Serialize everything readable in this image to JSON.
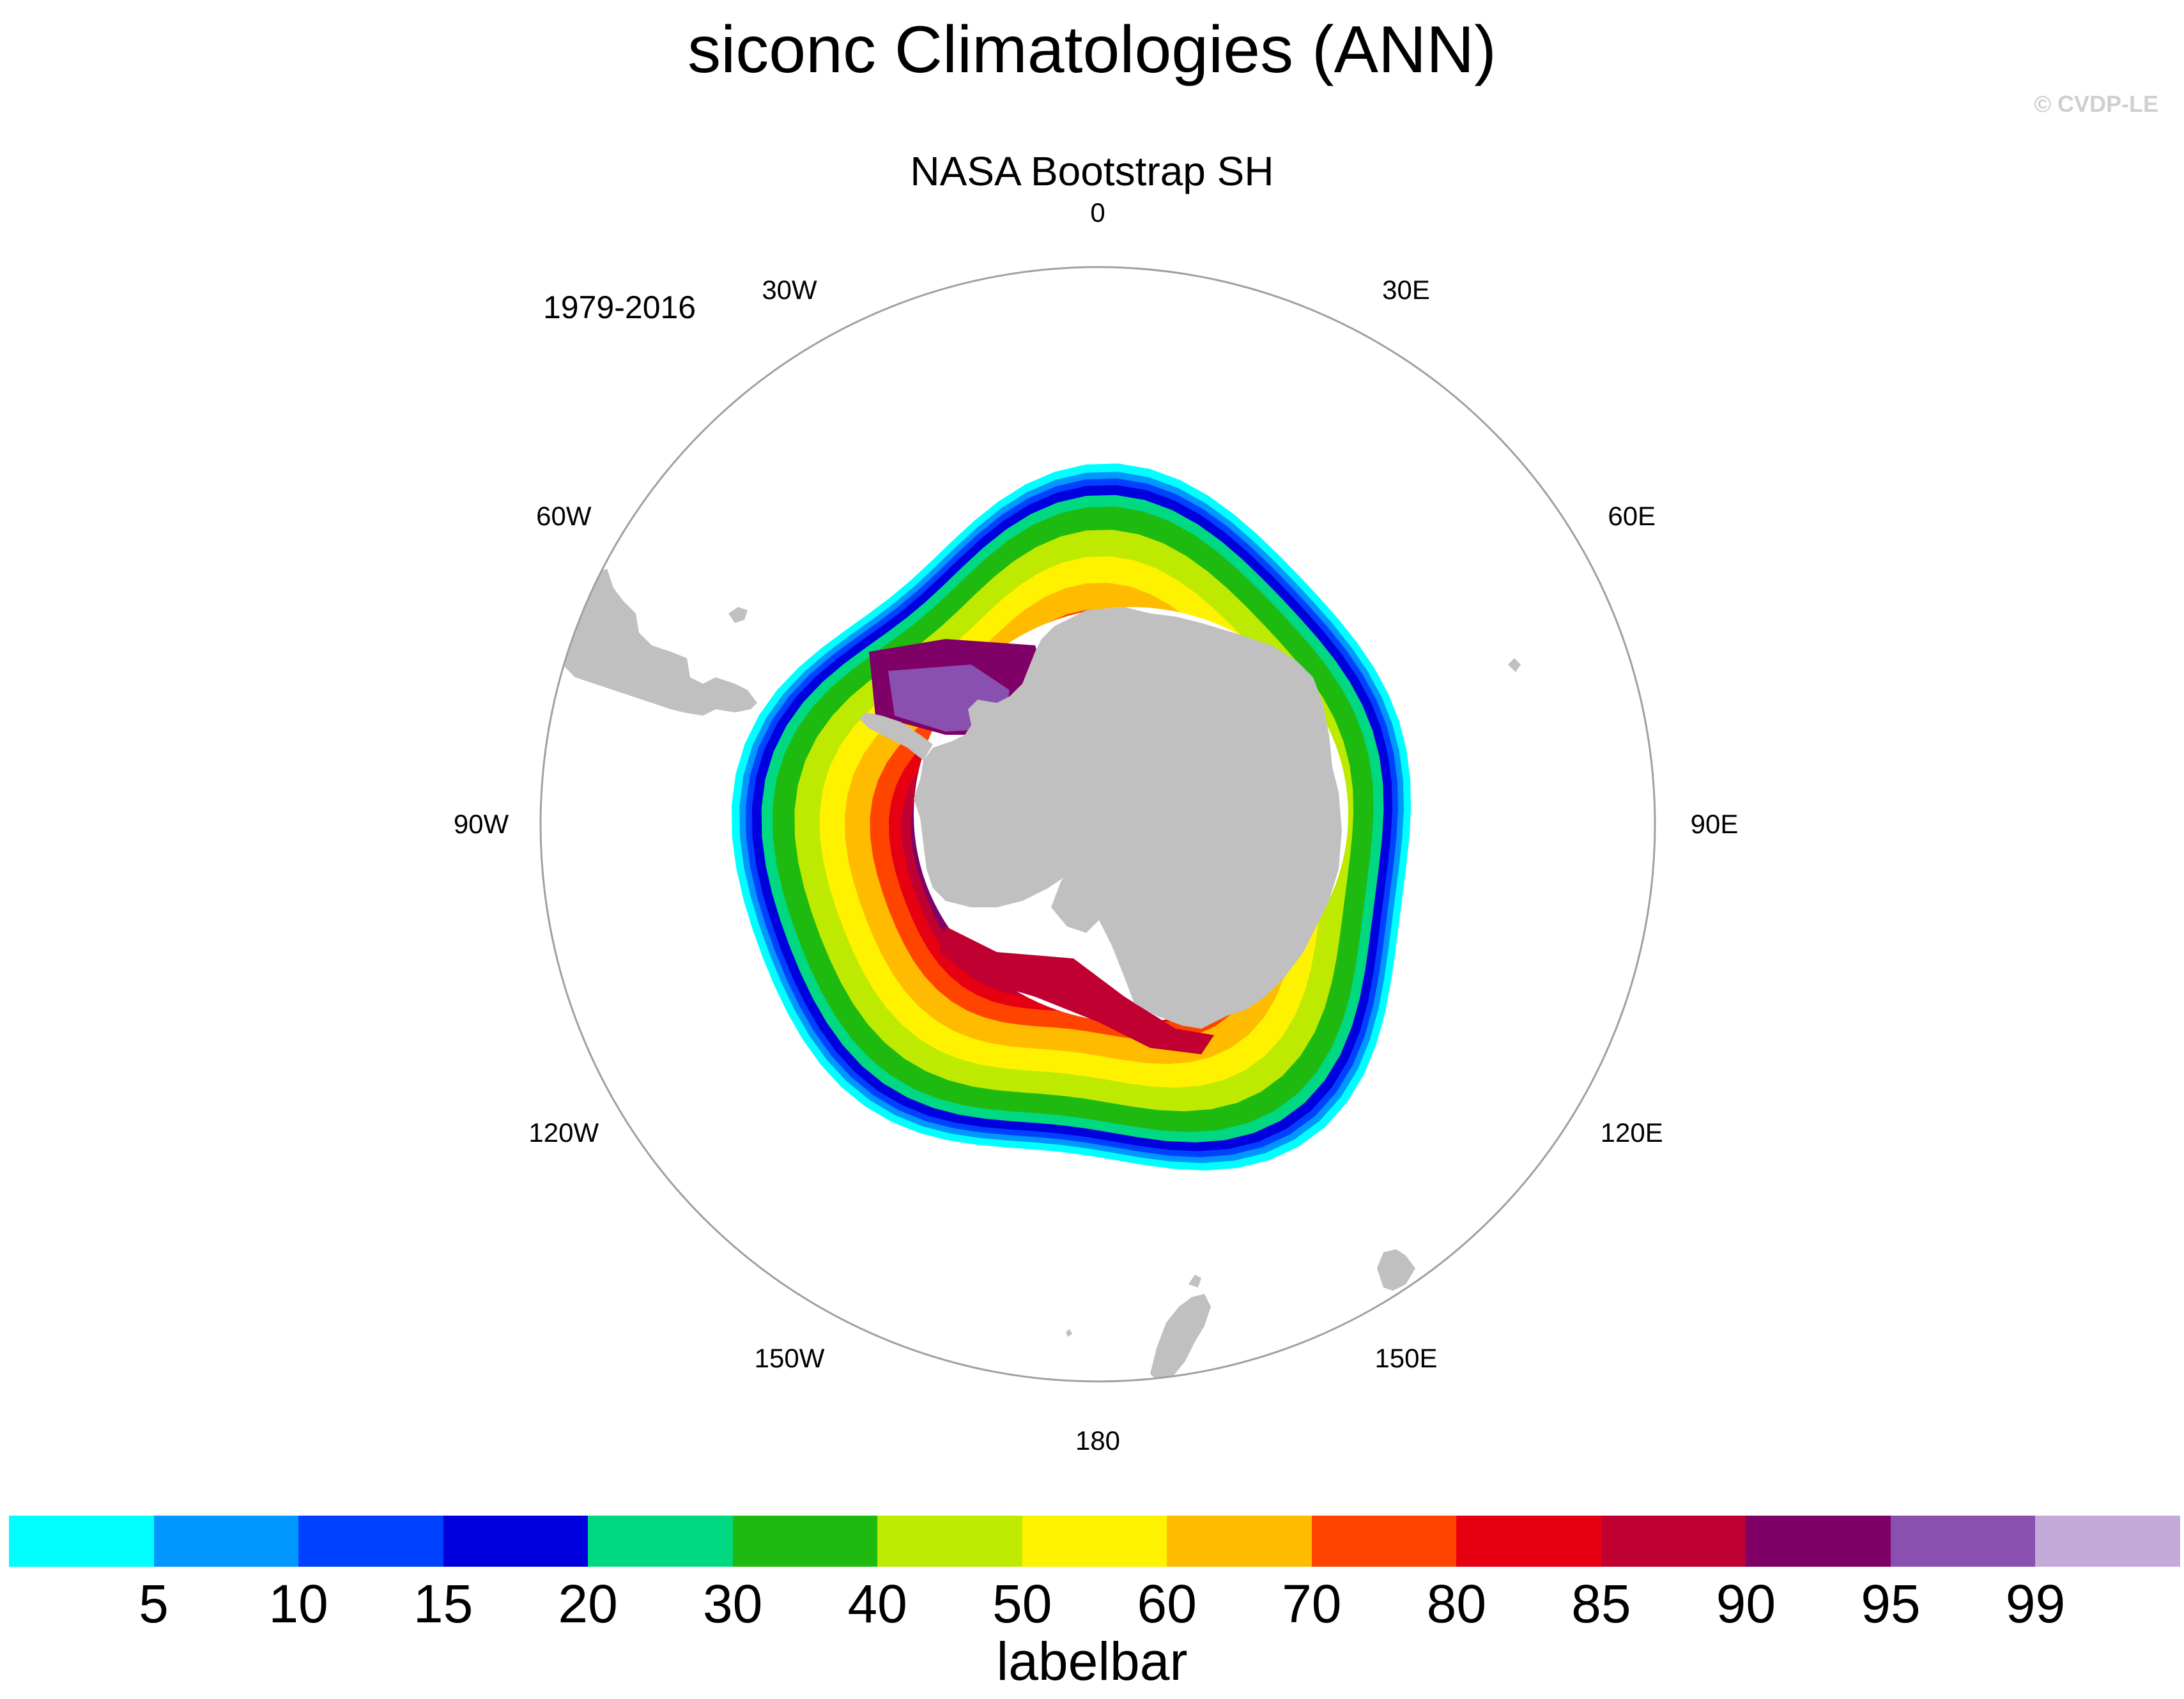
{
  "title": "siconc Climatologies (ANN)",
  "copyright": "© CVDP-LE",
  "subtitle": "NASA Bootstrap SH",
  "period": "1979-2016",
  "longitude_labels": [
    {
      "text": "0",
      "angle": 0
    },
    {
      "text": "30E",
      "angle": 30
    },
    {
      "text": "60E",
      "angle": 60
    },
    {
      "text": "90E",
      "angle": 90
    },
    {
      "text": "120E",
      "angle": 120
    },
    {
      "text": "150E",
      "angle": 150
    },
    {
      "text": "180",
      "angle": 180
    },
    {
      "text": "150W",
      "angle": 210
    },
    {
      "text": "120W",
      "angle": 240
    },
    {
      "text": "90W",
      "angle": 270
    },
    {
      "text": "60W",
      "angle": 300
    },
    {
      "text": "30W",
      "angle": 330
    }
  ],
  "colors": {
    "land": "#c0c0c0",
    "ocean": "#ffffff",
    "map_border": "#a0a0a0"
  },
  "sea_ice_bands": [
    {
      "min": 0,
      "max": 5,
      "color": "#00ffff"
    },
    {
      "min": 5,
      "max": 10,
      "color": "#0097ff"
    },
    {
      "min": 10,
      "max": 15,
      "color": "#0041ff"
    },
    {
      "min": 15,
      "max": 20,
      "color": "#0000df"
    },
    {
      "min": 20,
      "max": 30,
      "color": "#00d882"
    },
    {
      "min": 30,
      "max": 40,
      "color": "#1fba10"
    },
    {
      "min": 40,
      "max": 50,
      "color": "#bdea00"
    },
    {
      "min": 50,
      "max": 60,
      "color": "#fff200"
    },
    {
      "min": 60,
      "max": 70,
      "color": "#ffbb00"
    },
    {
      "min": 70,
      "max": 80,
      "color": "#ff4400"
    },
    {
      "min": 80,
      "max": 85,
      "color": "#e60012"
    },
    {
      "min": 85,
      "max": 90,
      "color": "#c00030"
    },
    {
      "min": 90,
      "max": 95,
      "color": "#7f0066"
    },
    {
      "min": 95,
      "max": 99,
      "color": "#8a50b0"
    },
    {
      "min": 99,
      "max": 100,
      "color": "#c4aad8"
    }
  ],
  "labelbar": {
    "tick_labels": [
      "5",
      "10",
      "15",
      "20",
      "30",
      "40",
      "50",
      "60",
      "70",
      "80",
      "85",
      "90",
      "95",
      "99"
    ],
    "title": "labelbar"
  }
}
